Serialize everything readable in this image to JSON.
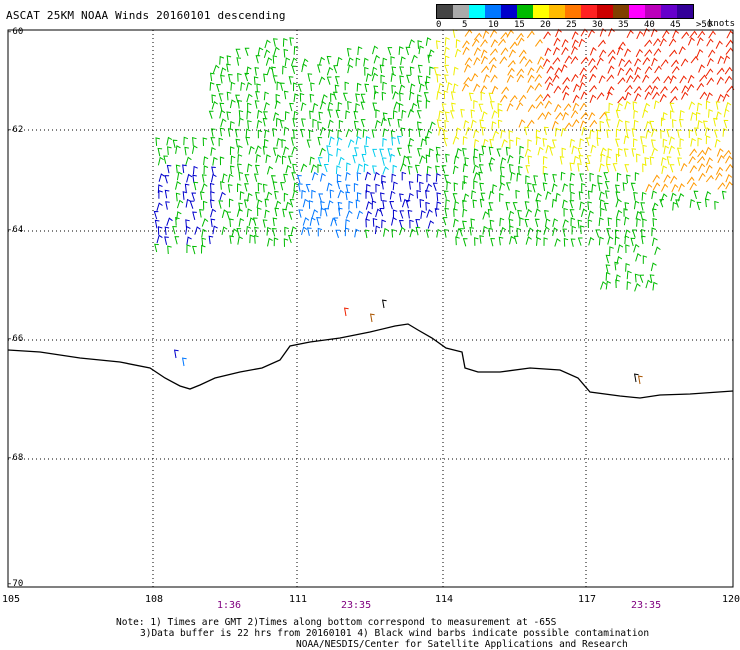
{
  "title": "ASCAT 25KM NOAA Winds 20160101 descending",
  "legend": {
    "colors": [
      "#444444",
      "#aaaaaa",
      "#00ffff",
      "#0077ff",
      "#0000cc",
      "#00bb00",
      "#ffff00",
      "#ffbb00",
      "#ff7700",
      "#ff2222",
      "#cc0000",
      "#804000",
      "#ff00ff",
      "#bb00bb",
      "#6600cc",
      "#330099"
    ],
    "labels": [
      "0",
      "5",
      "10",
      "15",
      "20",
      "25",
      "30",
      "35",
      "40",
      "45",
      ">50"
    ],
    "units": "knots"
  },
  "axes": {
    "lat_labels": [
      "-60",
      "-62",
      "-64",
      "-66",
      "-68",
      "-70"
    ],
    "lon_labels": [
      "105",
      "108",
      "111",
      "114",
      "117",
      "120"
    ]
  },
  "pass_times": [
    "1:36",
    "23:35",
    "23:35"
  ],
  "notes": [
    "Note: 1) Times are GMT 2)Times along bottom correspond to measurement at -65S",
    "3)Data buffer is 22 hrs from 20160101 4) Black wind barbs indicate possible contamination",
    "NOAA/NESDIS/Center for Satellite Applications and Research"
  ],
  "coastline_color": "#000000",
  "grid_style": "dotted"
}
